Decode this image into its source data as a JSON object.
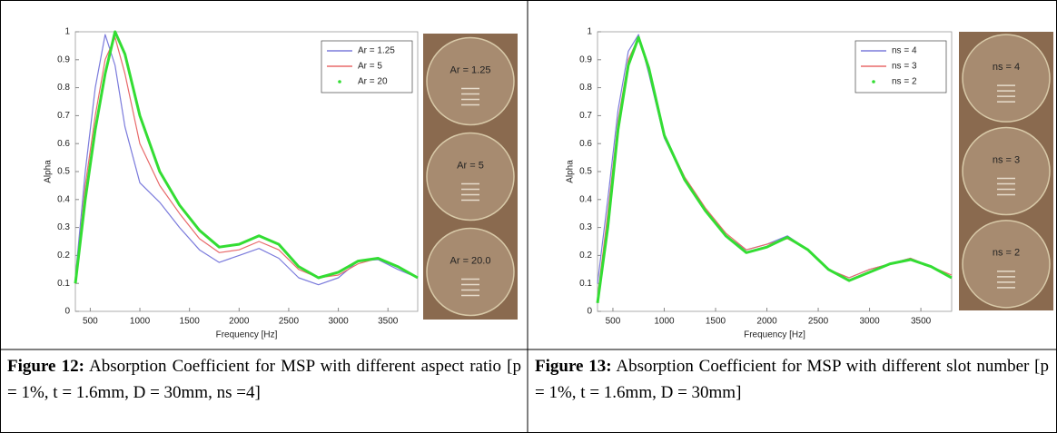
{
  "chart_data": [
    {
      "type": "line",
      "x_label": "Frequency [Hz]",
      "y_label": "Alpha",
      "x": [
        350,
        450,
        550,
        650,
        750,
        850,
        1000,
        1200,
        1400,
        1600,
        1800,
        2000,
        2200,
        2400,
        2600,
        2800,
        3000,
        3200,
        3400,
        3600,
        3800
      ],
      "series": [
        {
          "name": "Ar = 1.25",
          "color": "#7b7bdc",
          "values": [
            0.12,
            0.5,
            0.8,
            0.99,
            0.88,
            0.66,
            0.46,
            0.39,
            0.3,
            0.22,
            0.175,
            0.2,
            0.225,
            0.19,
            0.12,
            0.095,
            0.12,
            0.18,
            0.185,
            0.15,
            0.12
          ]
        },
        {
          "name": "Ar = 5",
          "color": "#e86a6a",
          "values": [
            0.1,
            0.45,
            0.7,
            0.9,
            0.98,
            0.85,
            0.6,
            0.45,
            0.35,
            0.26,
            0.21,
            0.22,
            0.25,
            0.22,
            0.15,
            0.12,
            0.13,
            0.17,
            0.19,
            0.16,
            0.12
          ]
        },
        {
          "name": "Ar = 20",
          "color": "#33dd33",
          "marker": "dot",
          "values": [
            0.1,
            0.4,
            0.65,
            0.85,
            1.0,
            0.92,
            0.7,
            0.5,
            0.38,
            0.29,
            0.23,
            0.24,
            0.27,
            0.24,
            0.16,
            0.12,
            0.14,
            0.18,
            0.19,
            0.16,
            0.12
          ]
        }
      ],
      "xlim": [
        350,
        3800
      ],
      "xticks": [
        500,
        1000,
        1500,
        2000,
        2500,
        3000,
        3500
      ],
      "ylim": [
        0,
        1
      ],
      "yticks": [
        0,
        0.1,
        0.2,
        0.3,
        0.4,
        0.5,
        0.6,
        0.7,
        0.8,
        0.9,
        1
      ],
      "legend": "upper right",
      "photo_labels": [
        {
          "text": "Ar = 1.25",
          "color": "#4a7fd0"
        },
        {
          "text": "Ar = 5",
          "color": "#e02020"
        },
        {
          "text": "Ar = 20.0",
          "color": "#20a040"
        }
      ]
    },
    {
      "type": "line",
      "x_label": "Frequency [Hz]",
      "y_label": "Alpha",
      "x": [
        350,
        450,
        550,
        650,
        750,
        850,
        1000,
        1200,
        1400,
        1600,
        1800,
        2000,
        2200,
        2400,
        2600,
        2800,
        3000,
        3200,
        3400,
        3600,
        3800
      ],
      "series": [
        {
          "name": "ns = 4",
          "color": "#7b7bdc",
          "values": [
            0.1,
            0.4,
            0.72,
            0.93,
            0.99,
            0.85,
            0.62,
            0.47,
            0.36,
            0.27,
            0.22,
            0.24,
            0.27,
            0.22,
            0.15,
            0.12,
            0.15,
            0.17,
            0.19,
            0.16,
            0.12
          ]
        },
        {
          "name": "ns = 3",
          "color": "#e86a6a",
          "values": [
            0.05,
            0.35,
            0.68,
            0.9,
            0.98,
            0.86,
            0.63,
            0.48,
            0.37,
            0.28,
            0.22,
            0.24,
            0.26,
            0.22,
            0.15,
            0.12,
            0.15,
            0.17,
            0.19,
            0.16,
            0.13
          ]
        },
        {
          "name": "ns = 2",
          "color": "#33dd33",
          "marker": "dot",
          "values": [
            0.03,
            0.3,
            0.65,
            0.88,
            0.98,
            0.87,
            0.63,
            0.47,
            0.36,
            0.27,
            0.21,
            0.23,
            0.265,
            0.22,
            0.15,
            0.11,
            0.14,
            0.17,
            0.185,
            0.16,
            0.12
          ]
        }
      ],
      "xlim": [
        350,
        3800
      ],
      "xticks": [
        500,
        1000,
        1500,
        2000,
        2500,
        3000,
        3500
      ],
      "ylim": [
        0,
        1
      ],
      "yticks": [
        0,
        0.1,
        0.2,
        0.3,
        0.4,
        0.5,
        0.6,
        0.7,
        0.8,
        0.9,
        1
      ],
      "legend": "upper right",
      "photo_labels": [
        {
          "text": "ns = 4",
          "color": "#4a9fd8"
        },
        {
          "text": "ns = 3",
          "color": "#e02020"
        },
        {
          "text": "ns = 2",
          "color": "#20a040"
        }
      ]
    }
  ],
  "captions": [
    {
      "label": "Figure 12:",
      "text": "Absorption Coefficient for MSP with different aspect ratio [p = 1%, t = 1.6mm, D = 30mm, ns =4]"
    },
    {
      "label": "Figure 13:",
      "text": "Absorption Coefficient for MSP with different slot number [p = 1%, t = 1.6mm, D = 30mm]"
    }
  ]
}
